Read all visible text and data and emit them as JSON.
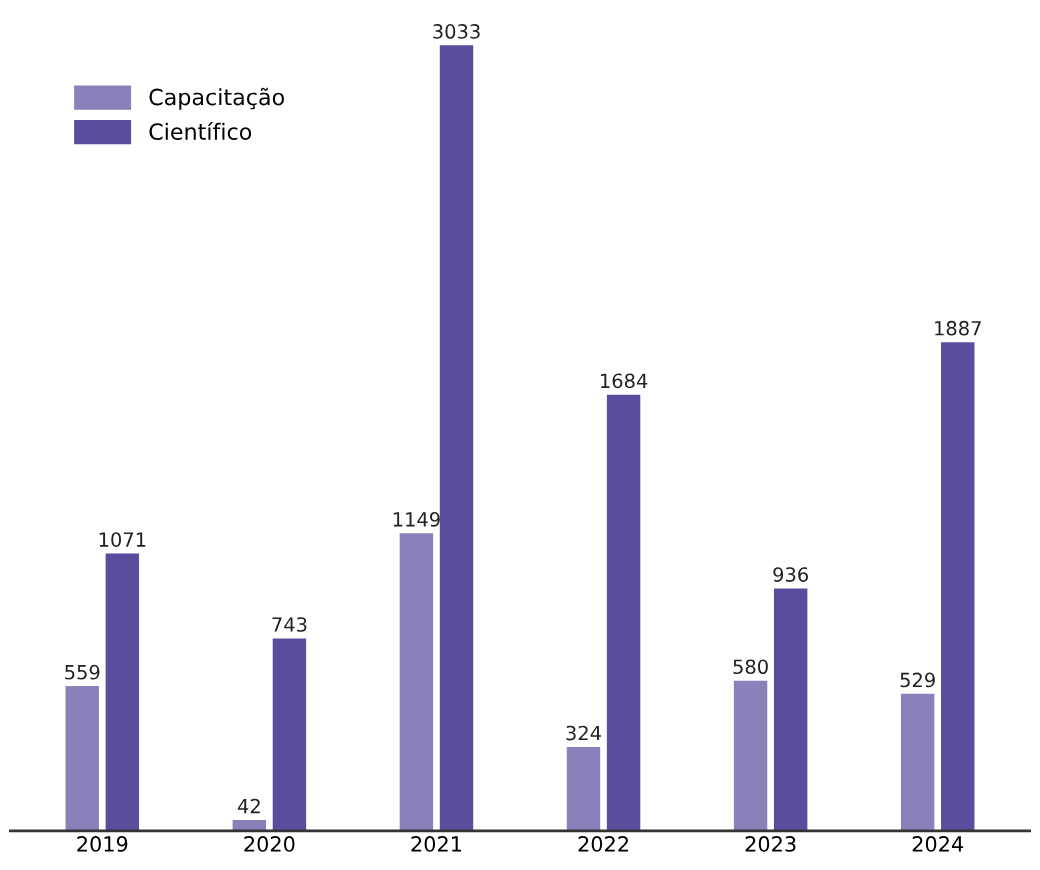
{
  "chart_data": {
    "type": "bar",
    "categories": [
      "2019",
      "2020",
      "2021",
      "2022",
      "2023",
      "2024"
    ],
    "series": [
      {
        "name": "Capacitação",
        "color": "#8b80ba",
        "values": [
          559,
          42,
          1149,
          324,
          580,
          529
        ]
      },
      {
        "name": "Científico",
        "color": "#5b4c9e",
        "values": [
          1071,
          743,
          3033,
          1684,
          936,
          1887
        ]
      }
    ],
    "data_labels": true,
    "legend": "top left",
    "grid": false,
    "tick_labels": "x"
  }
}
